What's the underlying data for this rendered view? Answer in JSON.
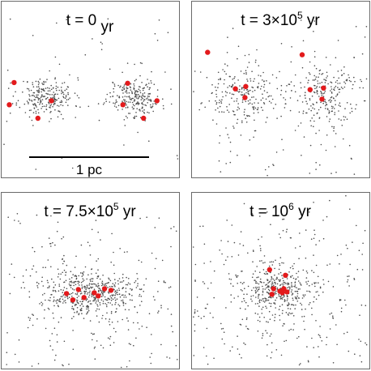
{
  "chart_data": [
    {
      "type": "scatter",
      "title": {
        "base": "t = 0",
        "exp": "",
        "unit": " yr"
      },
      "scale_bar": {
        "label": "1 pc"
      },
      "clusters": [
        {
          "cx": -0.55,
          "cy": 0.0,
          "sx": 0.17,
          "sy": 0.12,
          "n": 230
        },
        {
          "cx": 0.55,
          "cy": 0.0,
          "sx": 0.17,
          "sy": 0.12,
          "n": 230
        }
      ],
      "background_stars": 60,
      "massive_stars": [
        {
          "x": -0.96,
          "y": 0.18
        },
        {
          "x": -1.02,
          "y": -0.1
        },
        {
          "x": -0.49,
          "y": -0.05
        },
        {
          "x": -0.66,
          "y": -0.27
        },
        {
          "x": 0.47,
          "y": 0.17
        },
        {
          "x": 0.41,
          "y": -0.1
        },
        {
          "x": 0.84,
          "y": -0.05
        },
        {
          "x": 0.67,
          "y": -0.27
        }
      ],
      "seed": 11
    },
    {
      "type": "scatter",
      "title": {
        "base": "t = 3×10",
        "exp": "5",
        "unit": " yr"
      },
      "clusters": [
        {
          "cx": -0.52,
          "cy": 0.02,
          "sx": 0.23,
          "sy": 0.2,
          "n": 220
        },
        {
          "cx": 0.52,
          "cy": 0.02,
          "sx": 0.23,
          "sy": 0.2,
          "n": 220
        }
      ],
      "background_stars": 110,
      "massive_stars": [
        {
          "x": -0.92,
          "y": 0.56
        },
        {
          "x": -0.57,
          "y": 0.1
        },
        {
          "x": -0.44,
          "y": 0.13
        },
        {
          "x": -0.45,
          "y": -0.01
        },
        {
          "x": 0.27,
          "y": 0.53
        },
        {
          "x": 0.37,
          "y": 0.09
        },
        {
          "x": 0.54,
          "y": 0.11
        },
        {
          "x": 0.52,
          "y": -0.03
        }
      ],
      "seed": 23
    },
    {
      "type": "scatter",
      "title": {
        "base": "t = 7.5×10",
        "exp": "5",
        "unit": " yr"
      },
      "clusters": [
        {
          "cx": 0.0,
          "cy": -0.05,
          "sx": 0.28,
          "sy": 0.13,
          "n": 380
        },
        {
          "cx": 0.0,
          "cy": -0.05,
          "sx": 0.55,
          "sy": 0.4,
          "n": 180
        }
      ],
      "background_stars": 120,
      "massive_stars": [
        {
          "x": -0.3,
          "y": -0.07
        },
        {
          "x": -0.22,
          "y": -0.15
        },
        {
          "x": -0.15,
          "y": -0.02
        },
        {
          "x": -0.08,
          "y": -0.12
        },
        {
          "x": 0.05,
          "y": -0.06
        },
        {
          "x": 0.1,
          "y": -0.1
        },
        {
          "x": 0.18,
          "y": -0.01
        },
        {
          "x": 0.26,
          "y": -0.03
        }
      ],
      "seed": 37
    },
    {
      "type": "scatter",
      "title": {
        "base": "t = 10",
        "exp": "6",
        "unit": " yr"
      },
      "clusters": [
        {
          "cx": 0.0,
          "cy": -0.05,
          "sx": 0.22,
          "sy": 0.15,
          "n": 260
        },
        {
          "cx": 0.0,
          "cy": -0.05,
          "sx": 0.6,
          "sy": 0.5,
          "n": 260
        }
      ],
      "background_stars": 140,
      "massive_stars": [
        {
          "x": -0.14,
          "y": 0.23
        },
        {
          "x": 0.06,
          "y": 0.16
        },
        {
          "x": -0.09,
          "y": -0.01
        },
        {
          "x": -0.01,
          "y": -0.04
        },
        {
          "x": 0.04,
          "y": -0.01
        },
        {
          "x": 0.08,
          "y": -0.05
        },
        {
          "x": -0.11,
          "y": -0.08
        },
        {
          "x": 0.02,
          "y": -0.06
        }
      ],
      "seed": 53
    }
  ],
  "colors": {
    "star": "#4d4d4d",
    "massive_star": "#e31a1c",
    "frame": "#6a6a6a",
    "background": "#ffffff"
  }
}
